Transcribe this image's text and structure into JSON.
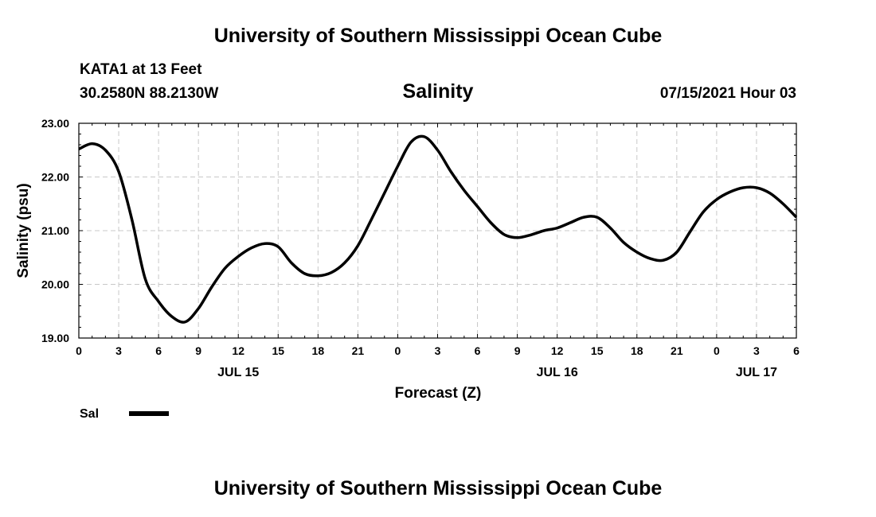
{
  "header": {
    "title": "University of Southern Mississippi Ocean Cube",
    "station": "KATA1 at 13 Feet",
    "coords": "30.2580N  88.2130W",
    "chart_title": "Salinity",
    "datetime": "07/15/2021 Hour 03"
  },
  "footer": {
    "title": "University of Southern Mississippi Ocean Cube"
  },
  "legend": {
    "label": "Sal"
  },
  "colors": {
    "line": "#000000",
    "grid": "#c8c8c8"
  },
  "chart_data": {
    "type": "line",
    "title": "Salinity",
    "xlabel": "Forecast (Z)",
    "ylabel": "Salinity (psu)",
    "ylim": [
      19.0,
      23.0
    ],
    "yticks": [
      "19.00",
      "20.00",
      "21.00",
      "22.00",
      "23.00"
    ],
    "xlim": [
      0,
      54
    ],
    "xtick_labels": [
      "0",
      "3",
      "6",
      "9",
      "12",
      "15",
      "18",
      "21",
      "0",
      "3",
      "6",
      "9",
      "12",
      "15",
      "18",
      "21",
      "0",
      "3",
      "6"
    ],
    "date_labels": [
      {
        "label": "JUL 15",
        "hour": 12
      },
      {
        "label": "JUL 16",
        "hour": 36
      },
      {
        "label": "JUL 17",
        "hour": 51
      }
    ],
    "grid": true,
    "series": [
      {
        "name": "Sal",
        "x": [
          0,
          1,
          2,
          3,
          4,
          5,
          6,
          7,
          8,
          9,
          10,
          11,
          12,
          13,
          14,
          15,
          16,
          17,
          18,
          19,
          20,
          21,
          22,
          23,
          24,
          25,
          26,
          27,
          28,
          29,
          30,
          31,
          32,
          33,
          34,
          35,
          36,
          37,
          38,
          39,
          40,
          41,
          42,
          43,
          44,
          45,
          46,
          47,
          48,
          49,
          50,
          51,
          52,
          53,
          54
        ],
        "values": [
          22.52,
          22.62,
          22.5,
          22.1,
          21.2,
          20.1,
          19.68,
          19.4,
          19.3,
          19.55,
          19.95,
          20.3,
          20.52,
          20.68,
          20.76,
          20.7,
          20.4,
          20.2,
          20.16,
          20.22,
          20.4,
          20.72,
          21.2,
          21.7,
          22.2,
          22.65,
          22.75,
          22.5,
          22.1,
          21.75,
          21.45,
          21.15,
          20.93,
          20.87,
          20.92,
          21.0,
          21.05,
          21.15,
          21.25,
          21.25,
          21.05,
          20.78,
          20.6,
          20.48,
          20.45,
          20.6,
          20.98,
          21.35,
          21.58,
          21.72,
          21.8,
          21.8,
          21.7,
          21.5,
          21.25
        ]
      }
    ]
  }
}
